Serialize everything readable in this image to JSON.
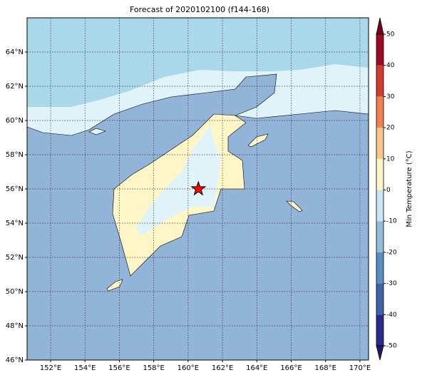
{
  "chart_data": {
    "type": "map",
    "title": "Forecast of 2020102100 (f144-168)",
    "xlim": [
      150.63,
      170.5
    ],
    "ylim": [
      46,
      66
    ],
    "xticks": [
      {
        "value": 152,
        "label": "152°E"
      },
      {
        "value": 154,
        "label": "154°E"
      },
      {
        "value": 156,
        "label": "156°E"
      },
      {
        "value": 158,
        "label": "158°E"
      },
      {
        "value": 160,
        "label": "160°E"
      },
      {
        "value": 162,
        "label": "162°E"
      },
      {
        "value": 164,
        "label": "164°E"
      },
      {
        "value": 166,
        "label": "166°E"
      },
      {
        "value": 168,
        "label": "168°E"
      },
      {
        "value": 170,
        "label": "170°E"
      }
    ],
    "yticks": [
      {
        "value": 46,
        "label": "46°N"
      },
      {
        "value": 48,
        "label": "48°N"
      },
      {
        "value": 50,
        "label": "50°N"
      },
      {
        "value": 52,
        "label": "52°N"
      },
      {
        "value": 54,
        "label": "54°N"
      },
      {
        "value": 56,
        "label": "56°N"
      },
      {
        "value": 58,
        "label": "58°N"
      },
      {
        "value": 60,
        "label": "60°N"
      },
      {
        "value": 62,
        "label": "62°N"
      },
      {
        "value": 64,
        "label": "64°N"
      }
    ],
    "grid": true,
    "marker": {
      "lon": 160.6,
      "lat": 56.0,
      "color": "#ff0000"
    },
    "colorbar": {
      "label": "Min Temperature (°C)",
      "lim": [
        -50,
        50
      ],
      "ticks": [
        -50,
        -40,
        -30,
        -20,
        -10,
        0,
        10,
        20,
        30,
        40,
        50
      ],
      "colors": [
        "#2a2a8c",
        "#3b62aa",
        "#5b8fc4",
        "#92bcdc",
        "#c9e7f2",
        "#fff6c8",
        "#fdc58b",
        "#f4824f",
        "#d63a2a",
        "#a00a26"
      ],
      "under_color": "#1c1c6a",
      "over_color": "#7a0020"
    }
  }
}
